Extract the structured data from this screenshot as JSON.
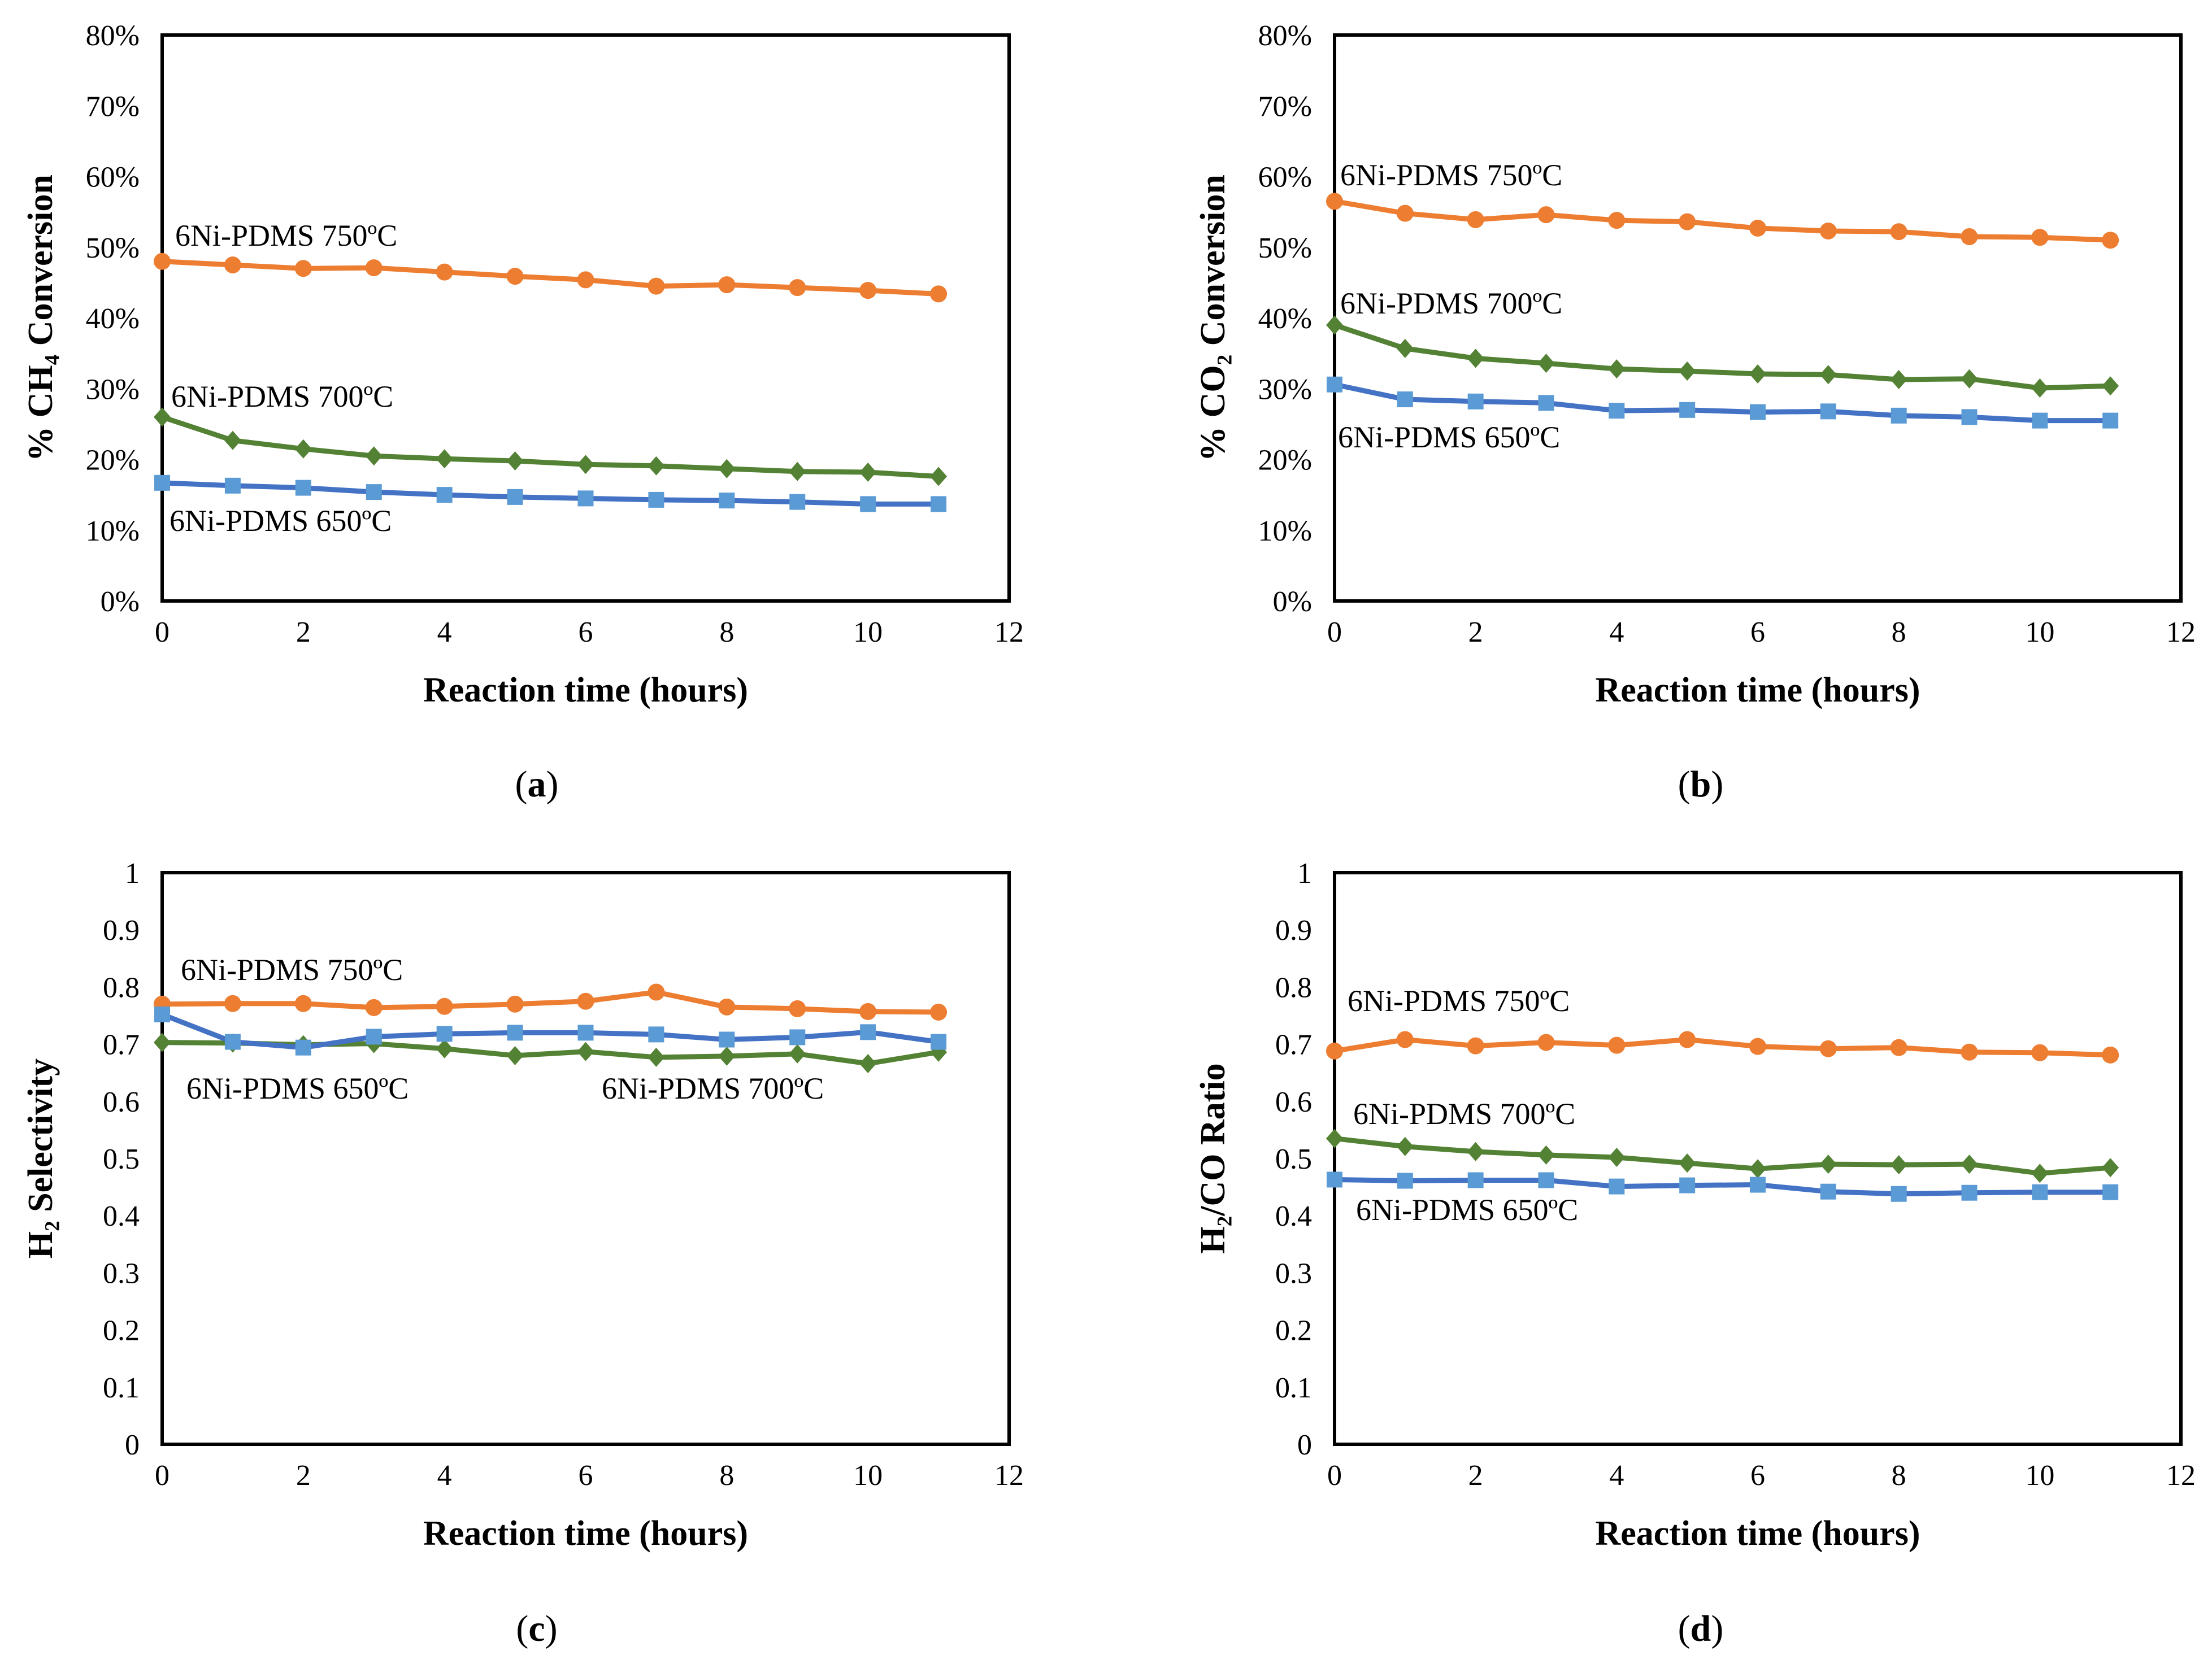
{
  "chart_data": [
    {
      "type": "line",
      "panel": "a",
      "caption": "a",
      "xlabel": "Reaction time (hours)",
      "ylabel": "% CH₄ Conversion",
      "xlim": [
        0,
        12
      ],
      "xticks": [
        "0",
        "2",
        "4",
        "6",
        "8",
        "10",
        "12"
      ],
      "ylim": [
        0,
        80
      ],
      "yticks": [
        "0%",
        "10%",
        "20%",
        "30%",
        "40%",
        "50%",
        "60%",
        "70%",
        "80%"
      ],
      "grid": false,
      "x": [
        0,
        1,
        2,
        3,
        4,
        5,
        6,
        7,
        8,
        9,
        10,
        11
      ],
      "series": [
        {
          "name": "6Ni-PDMS 750ºC",
          "color": "#ED7D31",
          "marker": "circle",
          "values": [
            48.0,
            47.5,
            47.0,
            47.1,
            46.5,
            45.9,
            45.4,
            44.5,
            44.7,
            44.3,
            43.9,
            43.4
          ]
        },
        {
          "name": "6Ni-PDMS 700ºC",
          "color": "#548235",
          "marker": "diamond",
          "values": [
            26.0,
            22.7,
            21.5,
            20.5,
            20.1,
            19.8,
            19.3,
            19.1,
            18.7,
            18.3,
            18.2,
            17.6
          ]
        },
        {
          "name": "6Ni-PDMS 650ºC",
          "color": "#4472C4",
          "marker": "square",
          "values": [
            16.7,
            16.3,
            16.0,
            15.4,
            15.0,
            14.7,
            14.5,
            14.3,
            14.2,
            14.0,
            13.7,
            13.7
          ]
        }
      ]
    },
    {
      "type": "line",
      "panel": "b",
      "caption": "b",
      "xlabel": "Reaction time (hours)",
      "ylabel": "% CO₂ Conversion",
      "xlim": [
        0,
        12
      ],
      "xticks": [
        "0",
        "2",
        "4",
        "6",
        "8",
        "10",
        "12"
      ],
      "ylim": [
        0,
        80
      ],
      "yticks": [
        "0%",
        "10%",
        "20%",
        "30%",
        "40%",
        "50%",
        "60%",
        "70%",
        "80%"
      ],
      "grid": false,
      "x": [
        0,
        1,
        2,
        3,
        4,
        5,
        6,
        7,
        8,
        9,
        10,
        11
      ],
      "series": [
        {
          "name": "6Ni-PDMS 750ºC",
          "color": "#ED7D31",
          "marker": "circle",
          "values": [
            56.5,
            54.8,
            53.9,
            54.6,
            53.8,
            53.6,
            52.7,
            52.3,
            52.2,
            51.5,
            51.4,
            51.0
          ]
        },
        {
          "name": "6Ni-PDMS 700ºC",
          "color": "#548235",
          "marker": "diamond",
          "values": [
            39.0,
            35.7,
            34.3,
            33.6,
            32.8,
            32.5,
            32.1,
            32.0,
            31.3,
            31.4,
            30.1,
            30.4
          ]
        },
        {
          "name": "6Ni-PDMS 650ºC",
          "color": "#4472C4",
          "marker": "square",
          "values": [
            30.6,
            28.5,
            28.2,
            28.0,
            26.9,
            27.0,
            26.7,
            26.8,
            26.2,
            26.0,
            25.5,
            25.5
          ]
        }
      ]
    },
    {
      "type": "line",
      "panel": "c",
      "caption": "c",
      "xlabel": "Reaction time (hours)",
      "ylabel": "H₂ Selectivity",
      "xlim": [
        0,
        12
      ],
      "xticks": [
        "0",
        "2",
        "4",
        "6",
        "8",
        "10",
        "12"
      ],
      "ylim": [
        0,
        1
      ],
      "yticks": [
        "0",
        "0.1",
        "0.2",
        "0.3",
        "0.4",
        "0.5",
        "0.6",
        "0.7",
        "0.8",
        "0.9",
        "1"
      ],
      "grid": false,
      "x": [
        0,
        1,
        2,
        3,
        4,
        5,
        6,
        7,
        8,
        9,
        10,
        11
      ],
      "series": [
        {
          "name": "6Ni-PDMS 750ºC",
          "color": "#ED7D31",
          "marker": "circle",
          "values": [
            0.77,
            0.771,
            0.771,
            0.764,
            0.766,
            0.77,
            0.775,
            0.791,
            0.765,
            0.762,
            0.757,
            0.756
          ]
        },
        {
          "name": "6Ni-PDMS 700ºC",
          "color": "#548235",
          "marker": "diamond",
          "values": [
            0.703,
            0.702,
            0.699,
            0.701,
            0.692,
            0.68,
            0.687,
            0.677,
            0.679,
            0.683,
            0.666,
            0.686
          ]
        },
        {
          "name": "6Ni-PDMS 650ºC",
          "color": "#4472C4",
          "marker": "square",
          "values": [
            0.752,
            0.704,
            0.694,
            0.713,
            0.718,
            0.72,
            0.72,
            0.717,
            0.708,
            0.712,
            0.721,
            0.704
          ]
        }
      ]
    },
    {
      "type": "line",
      "panel": "d",
      "caption": "d",
      "xlabel": "Reaction time (hours)",
      "ylabel": "H₂/CO Ratio",
      "xlim": [
        0,
        12
      ],
      "xticks": [
        "0",
        "2",
        "4",
        "6",
        "8",
        "10",
        "12"
      ],
      "ylim": [
        0,
        1
      ],
      "yticks": [
        "0",
        "0.1",
        "0.2",
        "0.3",
        "0.4",
        "0.5",
        "0.6",
        "0.7",
        "0.8",
        "0.9",
        "1"
      ],
      "grid": false,
      "x": [
        0,
        1,
        2,
        3,
        4,
        5,
        6,
        7,
        8,
        9,
        10,
        11
      ],
      "series": [
        {
          "name": "6Ni-PDMS 750ºC",
          "color": "#ED7D31",
          "marker": "circle",
          "values": [
            0.688,
            0.708,
            0.697,
            0.703,
            0.698,
            0.708,
            0.696,
            0.692,
            0.694,
            0.686,
            0.685,
            0.681
          ]
        },
        {
          "name": "6Ni-PDMS 700ºC",
          "color": "#548235",
          "marker": "diamond",
          "values": [
            0.535,
            0.521,
            0.512,
            0.506,
            0.502,
            0.492,
            0.482,
            0.49,
            0.489,
            0.49,
            0.474,
            0.484
          ]
        },
        {
          "name": "6Ni-PDMS 650ºC",
          "color": "#4472C4",
          "marker": "square",
          "values": [
            0.463,
            0.461,
            0.462,
            0.462,
            0.451,
            0.453,
            0.454,
            0.442,
            0.438,
            0.44,
            0.441,
            0.441
          ]
        }
      ]
    }
  ]
}
